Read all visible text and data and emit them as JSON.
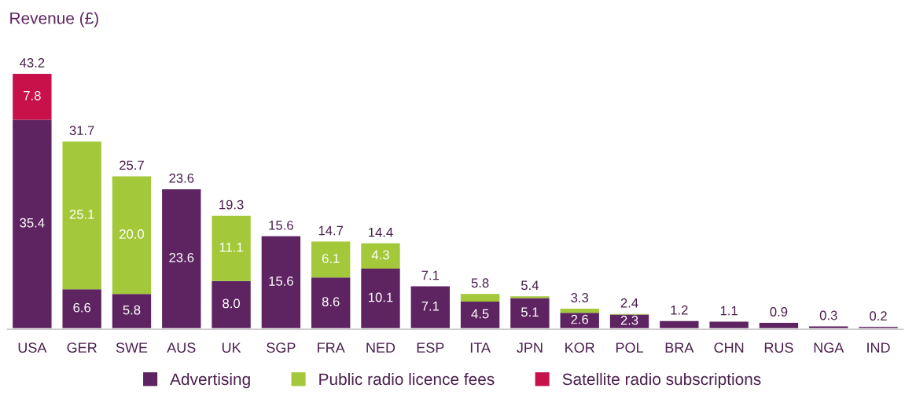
{
  "chart_data": {
    "type": "bar",
    "stacked": true,
    "ylabel": "Revenue (£)",
    "categories": [
      "USA",
      "GER",
      "SWE",
      "AUS",
      "UK",
      "SGP",
      "FRA",
      "NED",
      "ESP",
      "ITA",
      "JPN",
      "KOR",
      "POL",
      "BRA",
      "CHN",
      "RUS",
      "NGA",
      "IND"
    ],
    "series": [
      {
        "name": "Advertising",
        "color": "#5e2461",
        "values": [
          35.4,
          6.6,
          5.8,
          23.6,
          8.0,
          15.6,
          8.6,
          10.1,
          7.1,
          4.5,
          5.1,
          2.6,
          2.3,
          1.2,
          1.1,
          0.9,
          0.3,
          0.2
        ],
        "value_labels": [
          "35.4",
          "6.6",
          "5.8",
          "23.6",
          "8.0",
          "15.6",
          "8.6",
          "10.1",
          "7.1",
          "4.5",
          "5.1",
          "2.6",
          "2.3",
          null,
          null,
          null,
          null,
          null
        ]
      },
      {
        "name": "Public radio licence fees",
        "color": "#a3c93a",
        "values": [
          null,
          25.1,
          20.0,
          null,
          11.1,
          null,
          6.1,
          4.3,
          null,
          1.3,
          0.3,
          0.7,
          0.1,
          null,
          null,
          null,
          null,
          null
        ],
        "value_labels": [
          null,
          "25.1",
          "20.0",
          null,
          "11.1",
          null,
          "6.1",
          "4.3",
          null,
          null,
          null,
          null,
          null,
          null,
          null,
          null,
          null,
          null
        ]
      },
      {
        "name": "Satellite radio subscriptions",
        "color": "#c8104a",
        "values": [
          7.8,
          null,
          null,
          null,
          null,
          null,
          null,
          null,
          null,
          null,
          null,
          null,
          null,
          null,
          null,
          null,
          null,
          null
        ],
        "value_labels": [
          "7.8",
          null,
          null,
          null,
          null,
          null,
          null,
          null,
          null,
          null,
          null,
          null,
          null,
          null,
          null,
          null,
          null,
          null
        ]
      }
    ],
    "totals": [
      "43.2",
      "31.7",
      "25.7",
      "23.6",
      "19.3",
      "15.6",
      "14.7",
      "14.4",
      "7.1",
      "5.8",
      "5.4",
      "3.3",
      "2.4",
      "1.2",
      "1.1",
      "0.9",
      "0.3",
      "0.2"
    ],
    "legend": "bottom",
    "tick_labels": "x",
    "grid": false
  }
}
